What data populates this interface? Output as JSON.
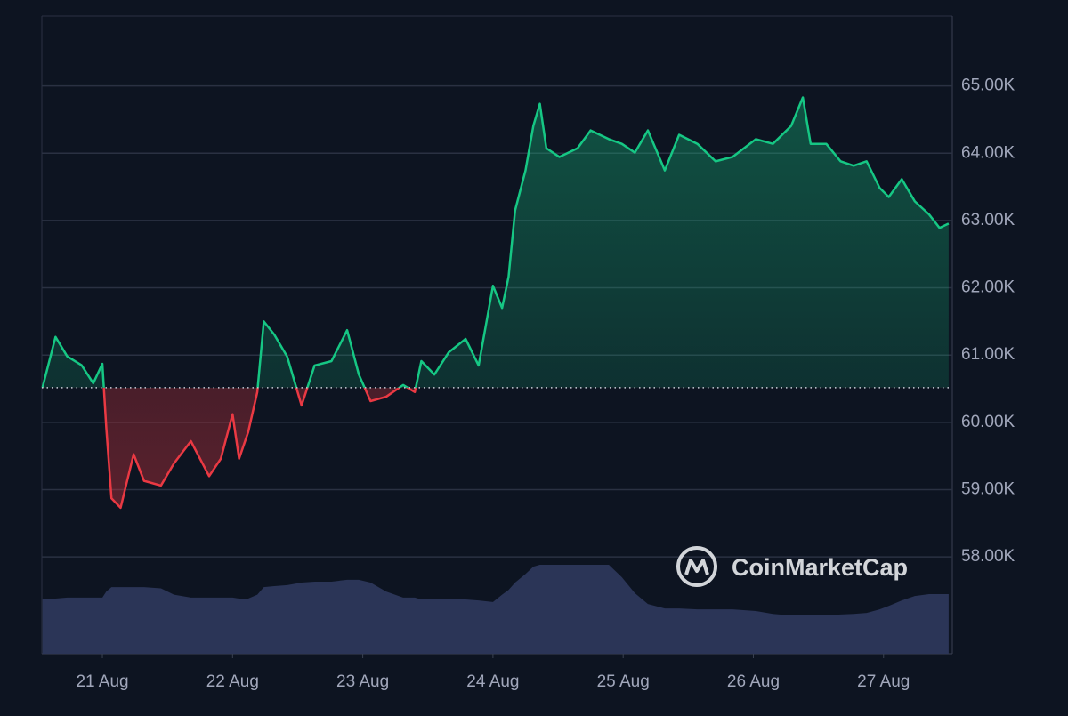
{
  "chart_data": {
    "type": "line",
    "watermark": "CoinMarketCap",
    "x": [
      20.54,
      20.64,
      20.73,
      20.84,
      20.93,
      21.0,
      21.03,
      21.07,
      21.14,
      21.24,
      21.32,
      21.45,
      21.55,
      21.68,
      21.82,
      21.91,
      22.0,
      22.05,
      22.12,
      22.19,
      22.24,
      22.32,
      22.42,
      22.53,
      22.63,
      22.76,
      22.88,
      22.97,
      23.06,
      23.18,
      23.31,
      23.4,
      23.45,
      23.55,
      23.66,
      23.79,
      23.89,
      24.0,
      24.07,
      24.12,
      24.17,
      24.25,
      24.31,
      24.36,
      24.41,
      24.51,
      24.65,
      24.75,
      24.89,
      24.99,
      25.09,
      25.19,
      25.32,
      25.43,
      25.57,
      25.71,
      25.84,
      26.02,
      26.15,
      26.29,
      26.38,
      26.44,
      26.56,
      26.67,
      26.77,
      26.87,
      26.97,
      27.04,
      27.14,
      27.24,
      27.35,
      27.43,
      27.5
    ],
    "baseline": 60515,
    "up_color": "#16c784",
    "down_color": "#ea3943",
    "series": [
      {
        "values": [
          60515,
          61270,
          60980,
          60850,
          60580,
          60870,
          59920,
          58870,
          58730,
          59525,
          59130,
          59060,
          59390,
          59720,
          59200,
          59460,
          60120,
          59460,
          59855,
          60450,
          61500,
          61305,
          60975,
          60250,
          60845,
          60910,
          61370,
          60710,
          60315,
          60380,
          60555,
          60450,
          60910,
          60710,
          61040,
          61240,
          60845,
          62030,
          61700,
          62165,
          63150,
          63745,
          64405,
          64735,
          64075,
          63945,
          64075,
          64340,
          64210,
          64140,
          64010,
          64340,
          63745,
          64275,
          64140,
          63880,
          63945,
          64210,
          64140,
          64405,
          64830,
          64140,
          64140,
          63880,
          63815,
          63880,
          63485,
          63350,
          63615,
          63285,
          63090,
          62890,
          62955
        ]
      },
      {
        "axis": "y2",
        "color": "#2b3557",
        "values": [
          17.3,
          17.3,
          17.6,
          17.6,
          17.6,
          17.6,
          19.5,
          20.9,
          20.9,
          20.9,
          20.9,
          20.5,
          18.5,
          17.6,
          17.6,
          17.6,
          17.6,
          17.3,
          17.3,
          18.5,
          20.9,
          21.2,
          21.5,
          22.3,
          22.6,
          22.6,
          23.2,
          23.2,
          22.3,
          19.5,
          17.6,
          17.6,
          17.0,
          17.0,
          17.3,
          17.0,
          16.7,
          16.2,
          18.5,
          20.0,
          22.3,
          25,
          27.3,
          27.9,
          27.9,
          27.9,
          27.9,
          27.9,
          27.9,
          24,
          19,
          15.6,
          14.2,
          14.2,
          13.9,
          13.9,
          13.9,
          13.4,
          12.5,
          12.0,
          12.0,
          12.0,
          12.0,
          12.3,
          12.5,
          12.8,
          13.9,
          15,
          16.7,
          18.1,
          18.7,
          18.7,
          18.7
        ]
      }
    ],
    "xlim": [
      20.535,
      27.528
    ],
    "xticks": [
      {
        "value": 21,
        "label": "21 Aug"
      },
      {
        "value": 22,
        "label": "22 Aug"
      },
      {
        "value": 23,
        "label": "23 Aug"
      },
      {
        "value": 24,
        "label": "24 Aug"
      },
      {
        "value": 25,
        "label": "25 Aug"
      },
      {
        "value": 26,
        "label": "26 Aug"
      },
      {
        "value": 27,
        "label": "27 Aug"
      }
    ],
    "ylim": [
      56560,
      66040
    ],
    "yticks": [
      {
        "value": 58000,
        "label": "58.00K"
      },
      {
        "value": 59000,
        "label": "59.00K"
      },
      {
        "value": 60000,
        "label": "60.00K"
      },
      {
        "value": 61000,
        "label": "61.00K"
      },
      {
        "value": 62000,
        "label": "62.00K"
      },
      {
        "value": 63000,
        "label": "63.00K"
      },
      {
        "value": 64000,
        "label": "64.00K"
      },
      {
        "value": 65000,
        "label": "65.00K"
      }
    ],
    "y2lim": [
      0,
      200
    ],
    "grid": true
  }
}
